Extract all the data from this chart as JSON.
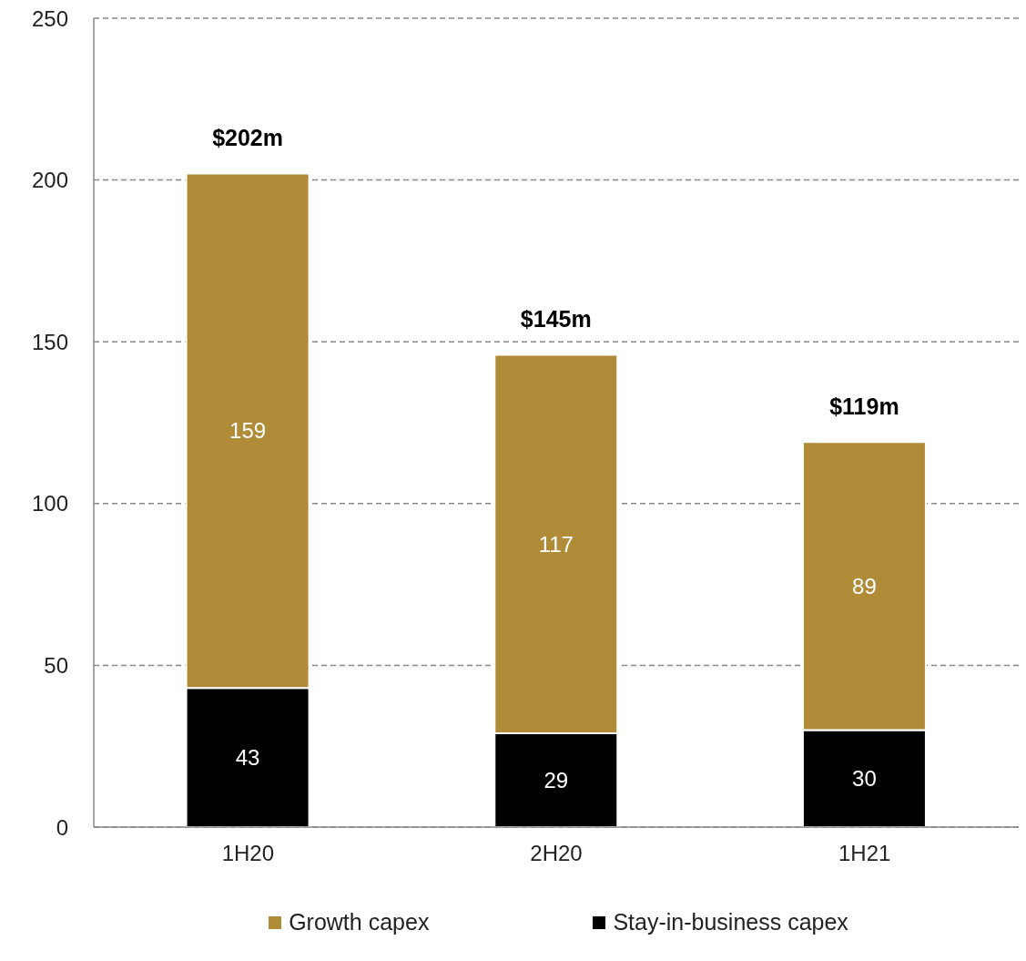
{
  "chart_data": {
    "type": "bar",
    "stacked": true,
    "categories": [
      "1H20",
      "2H20",
      "1H21"
    ],
    "series": [
      {
        "name": "Stay-in-business capex",
        "color": "#000000",
        "values": [
          43,
          29,
          30
        ]
      },
      {
        "name": "Growth capex",
        "color": "#b08c38",
        "values": [
          159,
          117,
          89
        ]
      }
    ],
    "totals": [
      "$202m",
      "$145m",
      "$119m"
    ],
    "data_labels": true,
    "ylim": [
      0,
      250
    ],
    "yticks": [
      0,
      50,
      100,
      150,
      200,
      250
    ],
    "grid": "y",
    "legend": "bottom"
  }
}
